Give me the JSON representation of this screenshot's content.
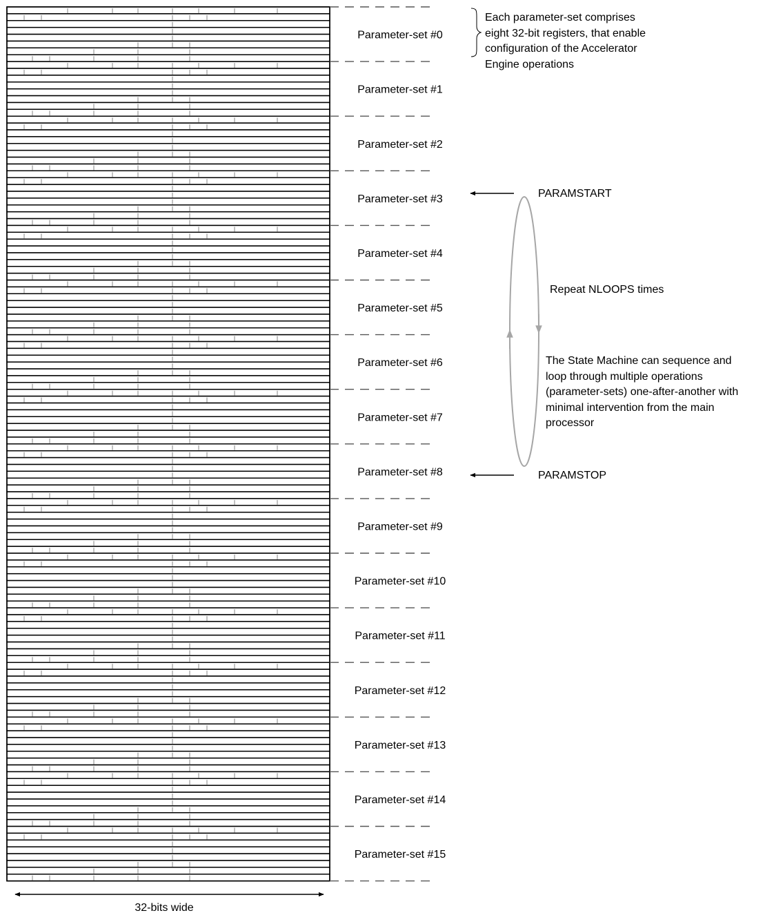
{
  "parameter_sets": [
    {
      "label": "Parameter-set #0"
    },
    {
      "label": "Parameter-set #1"
    },
    {
      "label": "Parameter-set #2"
    },
    {
      "label": "Parameter-set #3"
    },
    {
      "label": "Parameter-set #4"
    },
    {
      "label": "Parameter-set #5"
    },
    {
      "label": "Parameter-set #6"
    },
    {
      "label": "Parameter-set #7"
    },
    {
      "label": "Parameter-set #8"
    },
    {
      "label": "Parameter-set #9"
    },
    {
      "label": "Parameter-set #10"
    },
    {
      "label": "Parameter-set #11"
    },
    {
      "label": "Parameter-set #12"
    },
    {
      "label": "Parameter-set #13"
    },
    {
      "label": "Parameter-set #14"
    },
    {
      "label": "Parameter-set #15"
    }
  ],
  "registers_per_set": 8,
  "parameter_set_note": [
    "Each parameter-set comprises",
    "eight 32-bit registers, that enable",
    "configuration of the Accelerator",
    "Engine operations"
  ],
  "pointers": {
    "start": {
      "label": "PARAMSTART",
      "set_index": 3
    },
    "stop": {
      "label": "PARAMSTOP",
      "set_index": 8
    }
  },
  "loop_label": "Repeat NLOOPS times",
  "state_machine_note": [
    "The State Machine can sequence and",
    "loop through multiple operations",
    "(parameter-sets) one-after-another with",
    "minimal intervention from the main",
    "processor"
  ],
  "width_label": "32-bits wide",
  "colors": {
    "lines": "#000000",
    "ticks": "#999999",
    "dashes": "#555555",
    "loop": "#a6a6a6"
  }
}
